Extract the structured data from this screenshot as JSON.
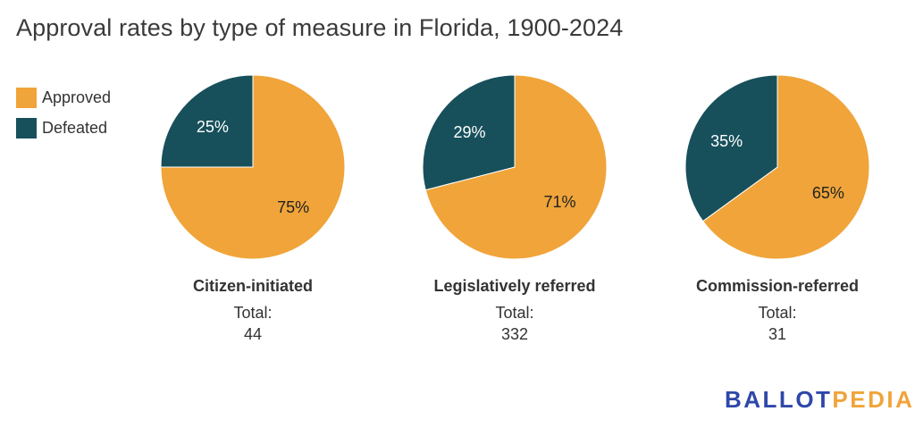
{
  "title": "Approval rates by type of measure in Florida, 1900-2024",
  "colors": {
    "approved": "#F0A43A",
    "defeated": "#17505B",
    "label_on_defeated": "#ffffff",
    "label_on_approved": "#222222",
    "logo_blue": "#2E47A8",
    "logo_orange": "#F0A43A"
  },
  "legend": [
    {
      "label": "Approved",
      "key": "approved"
    },
    {
      "label": "Defeated",
      "key": "defeated"
    }
  ],
  "logo": {
    "part1": "BALLOT",
    "part2": "PEDIA"
  },
  "chart_data": {
    "type": "pie",
    "title": "Approval rates by type of measure in Florida, 1900-2024",
    "legend_position": "top-left",
    "series_labels": [
      "Approved",
      "Defeated"
    ],
    "pies": [
      {
        "name": "Citizen-initiated",
        "total_label": "Total:",
        "total": "44",
        "values": [
          75,
          25
        ],
        "labels": [
          "75%",
          "25%"
        ]
      },
      {
        "name": "Legislatively referred",
        "total_label": "Total:",
        "total": "332",
        "values": [
          71,
          29
        ],
        "labels": [
          "71%",
          "29%"
        ]
      },
      {
        "name": "Commission-referred",
        "total_label": "Total:",
        "total": "31",
        "values": [
          65,
          35
        ],
        "labels": [
          "65%",
          "35%"
        ]
      }
    ]
  }
}
